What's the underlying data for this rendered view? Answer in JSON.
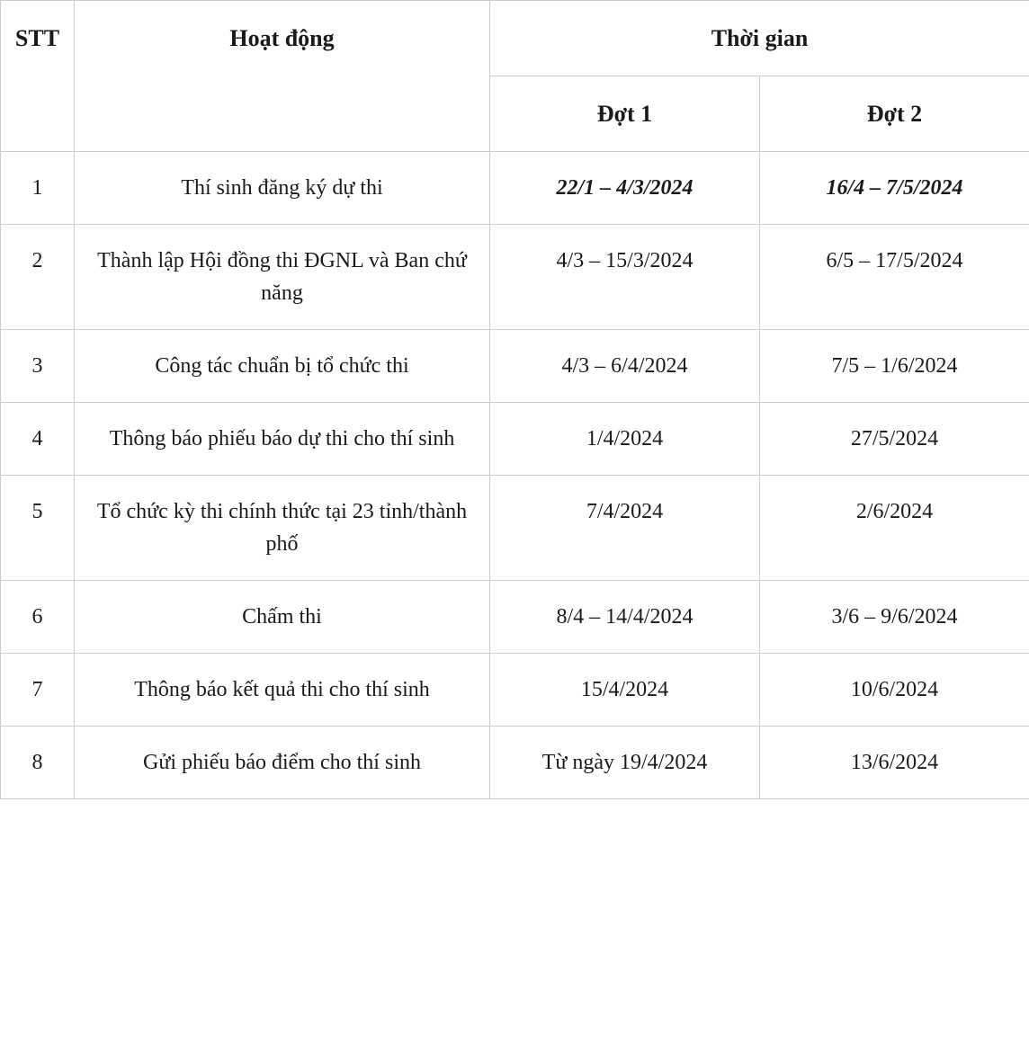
{
  "table": {
    "columns": {
      "stt": "STT",
      "activity": "Hoạt động",
      "time": "Thời gian",
      "dot1": "Đợt 1",
      "dot2": "Đợt 2"
    },
    "rows": [
      {
        "stt": "1",
        "activity": "Thí sinh đăng ký dự thi",
        "dot1": "22/1 – 4/3/2024",
        "dot2": "16/4 – 7/5/2024",
        "emphasis": true
      },
      {
        "stt": "2",
        "activity": "Thành lập Hội đồng thi ĐGNL và Ban chứ năng",
        "dot1": "4/3 – 15/3/2024",
        "dot2": "6/5 – 17/5/2024",
        "emphasis": false
      },
      {
        "stt": "3",
        "activity": "Công tác chuẩn bị tổ chức thi",
        "dot1": "4/3 – 6/4/2024",
        "dot2": "7/5 – 1/6/2024",
        "emphasis": false
      },
      {
        "stt": "4",
        "activity": "Thông báo phiếu báo dự thi cho thí sinh",
        "dot1": "1/4/2024",
        "dot2": "27/5/2024",
        "emphasis": false
      },
      {
        "stt": "5",
        "activity": "Tổ chức kỳ thi chính thức tại 23 tỉnh/thành phố",
        "dot1": "7/4/2024",
        "dot2": "2/6/2024",
        "emphasis": false
      },
      {
        "stt": "6",
        "activity": "Chấm thi",
        "dot1": "8/4 – 14/4/2024",
        "dot2": "3/6 – 9/6/2024",
        "emphasis": false
      },
      {
        "stt": "7",
        "activity": "Thông báo kết quả thi cho thí sinh",
        "dot1": "15/4/2024",
        "dot2": "10/6/2024",
        "emphasis": false
      },
      {
        "stt": "8",
        "activity": "Gửi phiếu báo điểm cho thí sinh",
        "dot1": "Từ ngày 19/4/2024",
        "dot2": "13/6/2024",
        "emphasis": false
      }
    ]
  },
  "style": {
    "border_color": "#cccccc",
    "text_color": "#1a1a1a",
    "background_color": "#ffffff",
    "header_fontsize": 26,
    "body_fontsize": 24,
    "col_widths": {
      "stt": 82,
      "activity": 462,
      "dot": 300
    }
  }
}
